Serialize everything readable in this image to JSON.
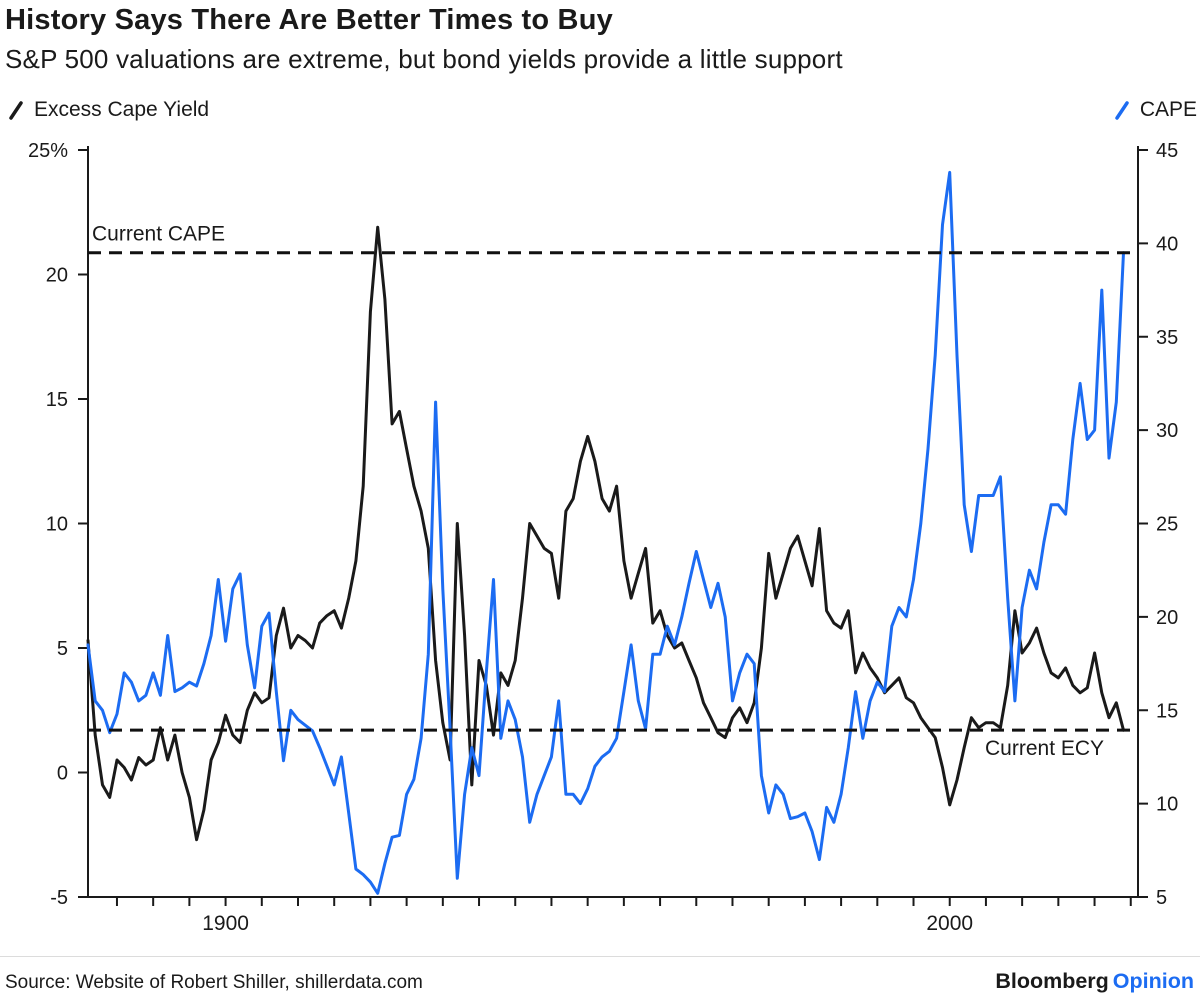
{
  "header": {
    "title": "History Says There Are Better Times to Buy",
    "subtitle": "S&P 500 valuations are extreme, but bond yields provide a little support"
  },
  "colors": {
    "blue": "#1c6cf2",
    "black": "#1a1a1a"
  },
  "chart_data": {
    "type": "line",
    "title": "History Says There Are Better Times to Buy",
    "subtitle": "S&P 500 valuations are extreme, but bond yields provide a little support",
    "grid": false,
    "legend_position": "top",
    "x_axis": {
      "range": [
        1881,
        2026
      ],
      "tick_start": 1885,
      "tick_step": 5,
      "labeled_ticks": [
        1900,
        2000
      ],
      "labeled_tick_labels": [
        "1900",
        "2000"
      ]
    },
    "left_axis": {
      "label": "Excess Cape Yield",
      "range": [
        -5,
        25
      ],
      "tick_values": [
        25,
        20,
        15,
        10,
        5,
        0,
        -5
      ],
      "tick_labels": [
        "25%",
        "20",
        "15",
        "10",
        "5",
        "0",
        "-5"
      ]
    },
    "right_axis": {
      "label": "CAPE",
      "range": [
        5,
        45
      ],
      "tick_values": [
        45,
        40,
        35,
        30,
        25,
        20,
        15,
        10,
        5
      ],
      "tick_labels": [
        "45",
        "40",
        "35",
        "30",
        "25",
        "20",
        "15",
        "10",
        "5"
      ]
    },
    "annotations": [
      {
        "label": "Current CAPE",
        "axis": "right",
        "value": 39.5,
        "label_x": 92,
        "label_position": "above"
      },
      {
        "label": "Current ECY",
        "axis": "left",
        "value": 1.7,
        "label_x": 985,
        "label_position": "below"
      }
    ],
    "years": [
      1881,
      1882,
      1883,
      1884,
      1885,
      1886,
      1887,
      1888,
      1889,
      1890,
      1891,
      1892,
      1893,
      1894,
      1895,
      1896,
      1897,
      1898,
      1899,
      1900,
      1901,
      1902,
      1903,
      1904,
      1905,
      1906,
      1907,
      1908,
      1909,
      1910,
      1911,
      1912,
      1913,
      1914,
      1915,
      1916,
      1917,
      1918,
      1919,
      1920,
      1921,
      1922,
      1923,
      1924,
      1925,
      1926,
      1927,
      1928,
      1929,
      1930,
      1931,
      1932,
      1933,
      1934,
      1935,
      1936,
      1937,
      1938,
      1939,
      1940,
      1941,
      1942,
      1943,
      1944,
      1945,
      1946,
      1947,
      1948,
      1949,
      1950,
      1951,
      1952,
      1953,
      1954,
      1955,
      1956,
      1957,
      1958,
      1959,
      1960,
      1961,
      1962,
      1963,
      1964,
      1965,
      1966,
      1967,
      1968,
      1969,
      1970,
      1971,
      1972,
      1973,
      1974,
      1975,
      1976,
      1977,
      1978,
      1979,
      1980,
      1981,
      1982,
      1983,
      1984,
      1985,
      1986,
      1987,
      1988,
      1989,
      1990,
      1991,
      1992,
      1993,
      1994,
      1995,
      1996,
      1997,
      1998,
      1999,
      2000,
      2001,
      2002,
      2003,
      2004,
      2005,
      2006,
      2007,
      2008,
      2009,
      2010,
      2011,
      2012,
      2013,
      2014,
      2015,
      2016,
      2017,
      2018,
      2019,
      2020,
      2021,
      2022,
      2023,
      2024
    ],
    "series": [
      {
        "name": "Excess Cape Yield",
        "axis": "left",
        "color": "#1a1a1a",
        "values": [
          5.3,
          1.5,
          -0.5,
          -1.0,
          0.5,
          0.2,
          -0.3,
          0.6,
          0.3,
          0.5,
          1.8,
          0.5,
          1.5,
          0.0,
          -1.0,
          -2.7,
          -1.5,
          0.5,
          1.2,
          2.3,
          1.5,
          1.2,
          2.5,
          3.2,
          2.8,
          3.0,
          5.5,
          6.6,
          5.0,
          5.5,
          5.3,
          5.0,
          6.0,
          6.3,
          6.5,
          5.8,
          7.0,
          8.5,
          11.5,
          18.5,
          21.9,
          19.0,
          14.0,
          14.5,
          13.0,
          11.5,
          10.5,
          9.0,
          4.5,
          2.0,
          0.5,
          10.0,
          5.5,
          -0.5,
          4.5,
          3.5,
          1.5,
          4.0,
          3.5,
          4.5,
          7.0,
          10.0,
          9.5,
          9.0,
          8.8,
          7.0,
          10.5,
          11.0,
          12.5,
          13.5,
          12.5,
          11.0,
          10.5,
          11.5,
          8.5,
          7.0,
          8.0,
          9.0,
          6.0,
          6.5,
          5.5,
          5.0,
          5.2,
          4.5,
          3.8,
          2.8,
          2.2,
          1.6,
          1.4,
          2.2,
          2.6,
          2.0,
          2.8,
          5.0,
          8.8,
          7.0,
          8.0,
          9.0,
          9.5,
          8.5,
          7.5,
          9.8,
          6.5,
          6.0,
          5.8,
          6.5,
          4.0,
          4.8,
          4.2,
          3.8,
          3.2,
          3.5,
          3.8,
          3.0,
          2.8,
          2.2,
          1.8,
          1.4,
          0.2,
          -1.3,
          -0.3,
          1.0,
          2.2,
          1.8,
          2.0,
          2.0,
          1.8,
          3.5,
          6.5,
          4.8,
          5.2,
          5.8,
          4.8,
          4.0,
          3.8,
          4.2,
          3.5,
          3.2,
          3.4,
          4.8,
          3.2,
          2.2,
          2.8,
          1.7
        ]
      },
      {
        "name": "CAPE",
        "axis": "right",
        "color": "#1c6cf2",
        "values": [
          18.5,
          15.5,
          15.0,
          13.8,
          14.8,
          17.0,
          16.5,
          15.5,
          15.8,
          17.0,
          15.8,
          19.0,
          16.0,
          16.2,
          16.5,
          16.3,
          17.5,
          19.0,
          22.0,
          18.7,
          21.5,
          22.3,
          18.5,
          16.2,
          19.5,
          20.2,
          16.0,
          12.3,
          15.0,
          14.5,
          14.2,
          13.9,
          13.0,
          12.0,
          11.0,
          12.5,
          9.5,
          6.5,
          6.2,
          5.8,
          5.2,
          6.8,
          8.2,
          8.3,
          10.5,
          11.3,
          13.5,
          18.0,
          31.5,
          21.5,
          14.0,
          6.0,
          10.5,
          13.0,
          11.5,
          17.0,
          22.0,
          13.5,
          15.5,
          14.5,
          12.5,
          9.0,
          10.5,
          11.5,
          12.5,
          15.5,
          10.5,
          10.5,
          10.0,
          10.8,
          12.0,
          12.5,
          12.8,
          13.5,
          16.0,
          18.5,
          15.5,
          14.0,
          18.0,
          18.0,
          19.5,
          18.5,
          20.0,
          21.8,
          23.5,
          22.0,
          20.5,
          21.8,
          20.0,
          15.5,
          17.0,
          18.0,
          17.5,
          11.5,
          9.5,
          11.0,
          10.5,
          9.2,
          9.3,
          9.5,
          8.5,
          7.0,
          9.8,
          9.0,
          10.5,
          13.0,
          16.0,
          13.5,
          15.5,
          16.5,
          16.0,
          19.5,
          20.5,
          20.0,
          22.0,
          25.0,
          29.0,
          34.0,
          41.0,
          43.8,
          34.0,
          26.0,
          23.5,
          26.5,
          26.5,
          26.5,
          27.5,
          21.0,
          15.5,
          20.5,
          22.5,
          21.5,
          24.0,
          26.0,
          26.0,
          25.5,
          29.5,
          32.5,
          29.5,
          30.0,
          37.5,
          28.5,
          31.5,
          39.5
        ]
      }
    ]
  },
  "footer": {
    "source": "Source: Website of Robert Shiller, shillerdata.com",
    "brand": "Bloomberg",
    "brand_highlight": "Opinion"
  }
}
